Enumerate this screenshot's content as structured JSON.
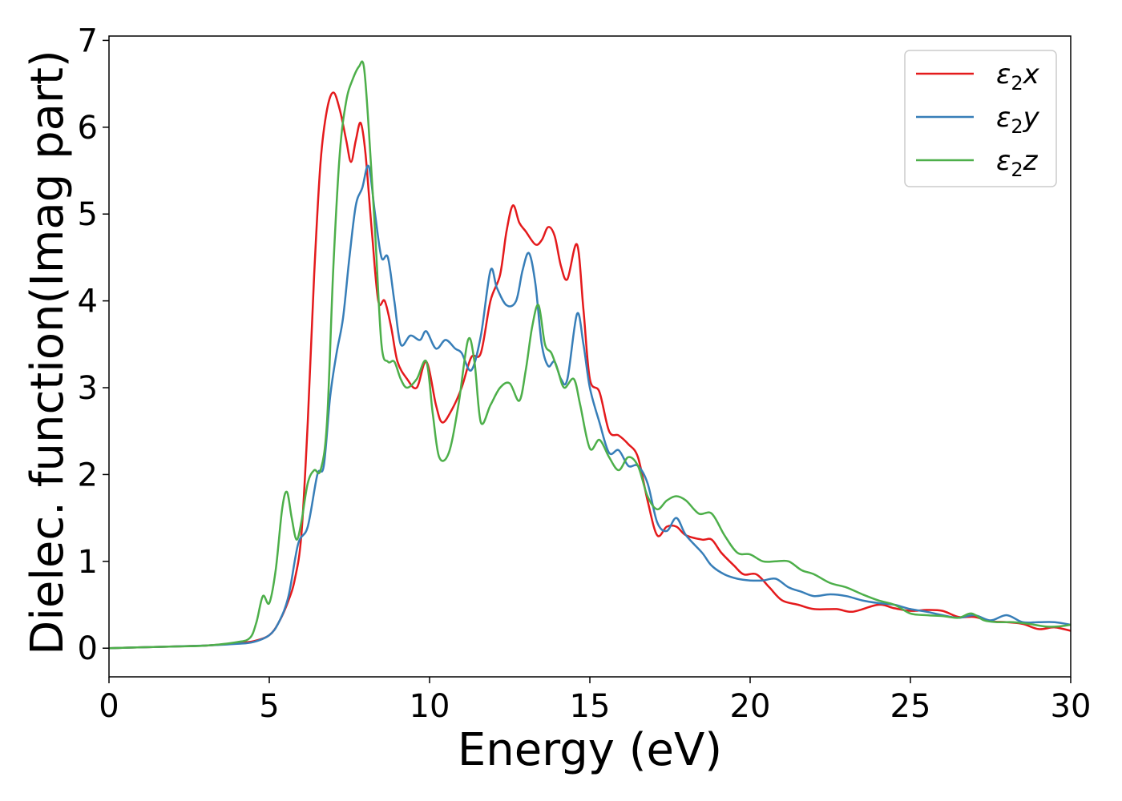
{
  "chart_data": {
    "type": "line",
    "title": "",
    "xlabel": "Energy (eV)",
    "ylabel": "Dielec. function(Imag part)",
    "xlim": [
      0,
      30
    ],
    "ylim": [
      -0.33,
      7.05
    ],
    "xticks": [
      0,
      5,
      10,
      15,
      20,
      25,
      30
    ],
    "yticks": [
      0,
      1,
      2,
      3,
      4,
      5,
      6,
      7
    ],
    "grid": false,
    "legend_position": "top-right",
    "series": [
      {
        "name": "ε₂x",
        "legend_base": "ε",
        "legend_sub": "2",
        "legend_var": "x",
        "color": "#e41a1c",
        "points": [
          [
            0,
            0
          ],
          [
            1,
            0.01
          ],
          [
            2,
            0.02
          ],
          [
            3,
            0.03
          ],
          [
            4,
            0.06
          ],
          [
            4.5,
            0.08
          ],
          [
            5,
            0.15
          ],
          [
            5.3,
            0.3
          ],
          [
            5.6,
            0.55
          ],
          [
            5.8,
            0.8
          ],
          [
            6.0,
            1.3
          ],
          [
            6.2,
            2.6
          ],
          [
            6.4,
            4.3
          ],
          [
            6.6,
            5.6
          ],
          [
            6.8,
            6.2
          ],
          [
            7.0,
            6.4
          ],
          [
            7.2,
            6.2
          ],
          [
            7.4,
            5.85
          ],
          [
            7.55,
            5.6
          ],
          [
            7.7,
            5.85
          ],
          [
            7.85,
            6.05
          ],
          [
            8.0,
            5.7
          ],
          [
            8.2,
            4.8
          ],
          [
            8.4,
            4.0
          ],
          [
            8.6,
            4.0
          ],
          [
            8.8,
            3.7
          ],
          [
            9.0,
            3.3
          ],
          [
            9.3,
            3.1
          ],
          [
            9.6,
            3.0
          ],
          [
            9.9,
            3.3
          ],
          [
            10.2,
            2.8
          ],
          [
            10.4,
            2.6
          ],
          [
            10.7,
            2.75
          ],
          [
            11.0,
            3.0
          ],
          [
            11.3,
            3.35
          ],
          [
            11.6,
            3.4
          ],
          [
            11.9,
            4.0
          ],
          [
            12.2,
            4.3
          ],
          [
            12.4,
            4.8
          ],
          [
            12.6,
            5.1
          ],
          [
            12.8,
            4.9
          ],
          [
            13.0,
            4.8
          ],
          [
            13.3,
            4.65
          ],
          [
            13.5,
            4.7
          ],
          [
            13.7,
            4.85
          ],
          [
            13.9,
            4.75
          ],
          [
            14.1,
            4.4
          ],
          [
            14.3,
            4.25
          ],
          [
            14.6,
            4.65
          ],
          [
            14.8,
            3.9
          ],
          [
            15.0,
            3.1
          ],
          [
            15.3,
            2.95
          ],
          [
            15.6,
            2.5
          ],
          [
            15.9,
            2.45
          ],
          [
            16.2,
            2.35
          ],
          [
            16.5,
            2.2
          ],
          [
            16.8,
            1.7
          ],
          [
            17.1,
            1.3
          ],
          [
            17.4,
            1.4
          ],
          [
            17.7,
            1.4
          ],
          [
            18.0,
            1.3
          ],
          [
            18.5,
            1.25
          ],
          [
            18.8,
            1.25
          ],
          [
            19.1,
            1.1
          ],
          [
            19.5,
            0.95
          ],
          [
            19.8,
            0.85
          ],
          [
            20.2,
            0.85
          ],
          [
            20.6,
            0.7
          ],
          [
            21.0,
            0.55
          ],
          [
            21.5,
            0.5
          ],
          [
            22.0,
            0.45
          ],
          [
            22.7,
            0.45
          ],
          [
            23.2,
            0.42
          ],
          [
            24.0,
            0.5
          ],
          [
            24.5,
            0.46
          ],
          [
            25.0,
            0.43
          ],
          [
            25.5,
            0.44
          ],
          [
            26.0,
            0.43
          ],
          [
            26.5,
            0.36
          ],
          [
            27.0,
            0.36
          ],
          [
            27.5,
            0.31
          ],
          [
            28.0,
            0.3
          ],
          [
            28.5,
            0.28
          ],
          [
            29.0,
            0.22
          ],
          [
            29.5,
            0.24
          ],
          [
            30,
            0.2
          ]
        ]
      },
      {
        "name": "ε₂y",
        "legend_base": "ε",
        "legend_sub": "2",
        "legend_var": "y",
        "color": "#377eb8",
        "points": [
          [
            0,
            0
          ],
          [
            1,
            0.01
          ],
          [
            2,
            0.02
          ],
          [
            3,
            0.03
          ],
          [
            4,
            0.05
          ],
          [
            4.5,
            0.07
          ],
          [
            5,
            0.15
          ],
          [
            5.3,
            0.3
          ],
          [
            5.6,
            0.6
          ],
          [
            5.9,
            1.2
          ],
          [
            6.2,
            1.4
          ],
          [
            6.5,
            2.0
          ],
          [
            6.7,
            2.1
          ],
          [
            6.9,
            2.9
          ],
          [
            7.1,
            3.4
          ],
          [
            7.3,
            3.8
          ],
          [
            7.5,
            4.5
          ],
          [
            7.7,
            5.1
          ],
          [
            7.9,
            5.3
          ],
          [
            8.1,
            5.55
          ],
          [
            8.3,
            5.0
          ],
          [
            8.5,
            4.5
          ],
          [
            8.7,
            4.5
          ],
          [
            8.9,
            4.0
          ],
          [
            9.1,
            3.5
          ],
          [
            9.4,
            3.6
          ],
          [
            9.7,
            3.55
          ],
          [
            9.9,
            3.65
          ],
          [
            10.2,
            3.45
          ],
          [
            10.5,
            3.55
          ],
          [
            10.8,
            3.45
          ],
          [
            11.0,
            3.4
          ],
          [
            11.3,
            3.2
          ],
          [
            11.6,
            3.6
          ],
          [
            11.9,
            4.35
          ],
          [
            12.1,
            4.15
          ],
          [
            12.4,
            3.95
          ],
          [
            12.7,
            4.0
          ],
          [
            12.9,
            4.35
          ],
          [
            13.1,
            4.55
          ],
          [
            13.3,
            4.2
          ],
          [
            13.5,
            3.5
          ],
          [
            13.7,
            3.25
          ],
          [
            13.9,
            3.3
          ],
          [
            14.1,
            3.1
          ],
          [
            14.3,
            3.1
          ],
          [
            14.6,
            3.85
          ],
          [
            14.8,
            3.5
          ],
          [
            15.0,
            3.0
          ],
          [
            15.3,
            2.6
          ],
          [
            15.6,
            2.25
          ],
          [
            15.9,
            2.28
          ],
          [
            16.2,
            2.1
          ],
          [
            16.5,
            2.1
          ],
          [
            16.8,
            1.9
          ],
          [
            17.1,
            1.45
          ],
          [
            17.4,
            1.35
          ],
          [
            17.7,
            1.5
          ],
          [
            18.0,
            1.3
          ],
          [
            18.5,
            1.1
          ],
          [
            18.8,
            0.95
          ],
          [
            19.2,
            0.85
          ],
          [
            19.6,
            0.8
          ],
          [
            20.0,
            0.78
          ],
          [
            20.4,
            0.78
          ],
          [
            20.8,
            0.8
          ],
          [
            21.2,
            0.7
          ],
          [
            21.6,
            0.65
          ],
          [
            22.0,
            0.6
          ],
          [
            22.5,
            0.62
          ],
          [
            23.0,
            0.6
          ],
          [
            23.5,
            0.55
          ],
          [
            24.0,
            0.52
          ],
          [
            24.5,
            0.5
          ],
          [
            25.0,
            0.45
          ],
          [
            25.5,
            0.42
          ],
          [
            26.0,
            0.38
          ],
          [
            26.5,
            0.35
          ],
          [
            27.0,
            0.38
          ],
          [
            27.5,
            0.32
          ],
          [
            28.0,
            0.38
          ],
          [
            28.5,
            0.3
          ],
          [
            29.0,
            0.3
          ],
          [
            29.5,
            0.3
          ],
          [
            30,
            0.27
          ]
        ]
      },
      {
        "name": "ε₂z",
        "legend_base": "ε",
        "legend_sub": "2",
        "legend_var": "z",
        "color": "#4daf4a",
        "points": [
          [
            0,
            0
          ],
          [
            1,
            0.01
          ],
          [
            2,
            0.02
          ],
          [
            3,
            0.03
          ],
          [
            4,
            0.07
          ],
          [
            4.4,
            0.12
          ],
          [
            4.6,
            0.3
          ],
          [
            4.8,
            0.6
          ],
          [
            5.0,
            0.52
          ],
          [
            5.2,
            0.9
          ],
          [
            5.4,
            1.6
          ],
          [
            5.55,
            1.8
          ],
          [
            5.7,
            1.5
          ],
          [
            5.85,
            1.25
          ],
          [
            6.0,
            1.45
          ],
          [
            6.2,
            1.9
          ],
          [
            6.4,
            2.05
          ],
          [
            6.6,
            2.05
          ],
          [
            6.8,
            2.6
          ],
          [
            7.0,
            4.4
          ],
          [
            7.2,
            5.7
          ],
          [
            7.4,
            6.3
          ],
          [
            7.6,
            6.55
          ],
          [
            7.8,
            6.7
          ],
          [
            7.95,
            6.7
          ],
          [
            8.1,
            6.0
          ],
          [
            8.3,
            4.8
          ],
          [
            8.5,
            3.5
          ],
          [
            8.7,
            3.3
          ],
          [
            8.9,
            3.3
          ],
          [
            9.1,
            3.1
          ],
          [
            9.3,
            3.0
          ],
          [
            9.6,
            3.1
          ],
          [
            9.9,
            3.3
          ],
          [
            10.1,
            2.7
          ],
          [
            10.3,
            2.2
          ],
          [
            10.6,
            2.25
          ],
          [
            10.9,
            2.8
          ],
          [
            11.2,
            3.55
          ],
          [
            11.4,
            3.3
          ],
          [
            11.6,
            2.6
          ],
          [
            11.9,
            2.8
          ],
          [
            12.2,
            3.0
          ],
          [
            12.5,
            3.05
          ],
          [
            12.8,
            2.85
          ],
          [
            13.0,
            3.2
          ],
          [
            13.2,
            3.7
          ],
          [
            13.4,
            3.95
          ],
          [
            13.6,
            3.5
          ],
          [
            13.8,
            3.4
          ],
          [
            14.0,
            3.2
          ],
          [
            14.2,
            3.0
          ],
          [
            14.5,
            3.1
          ],
          [
            14.7,
            2.8
          ],
          [
            15.0,
            2.3
          ],
          [
            15.3,
            2.4
          ],
          [
            15.6,
            2.2
          ],
          [
            15.9,
            2.05
          ],
          [
            16.2,
            2.2
          ],
          [
            16.5,
            2.1
          ],
          [
            16.8,
            1.75
          ],
          [
            17.1,
            1.6
          ],
          [
            17.4,
            1.7
          ],
          [
            17.7,
            1.75
          ],
          [
            18.0,
            1.7
          ],
          [
            18.4,
            1.55
          ],
          [
            18.8,
            1.55
          ],
          [
            19.2,
            1.3
          ],
          [
            19.6,
            1.1
          ],
          [
            20.0,
            1.08
          ],
          [
            20.4,
            1.0
          ],
          [
            20.8,
            1.0
          ],
          [
            21.2,
            1.0
          ],
          [
            21.6,
            0.9
          ],
          [
            22.0,
            0.85
          ],
          [
            22.5,
            0.75
          ],
          [
            23.0,
            0.7
          ],
          [
            23.5,
            0.62
          ],
          [
            24.0,
            0.55
          ],
          [
            24.5,
            0.5
          ],
          [
            25.0,
            0.4
          ],
          [
            25.5,
            0.38
          ],
          [
            26.0,
            0.37
          ],
          [
            26.5,
            0.35
          ],
          [
            26.9,
            0.4
          ],
          [
            27.3,
            0.32
          ],
          [
            27.7,
            0.3
          ],
          [
            28.2,
            0.3
          ],
          [
            28.7,
            0.28
          ],
          [
            29.2,
            0.25
          ],
          [
            29.6,
            0.25
          ],
          [
            30,
            0.27
          ]
        ]
      }
    ]
  }
}
